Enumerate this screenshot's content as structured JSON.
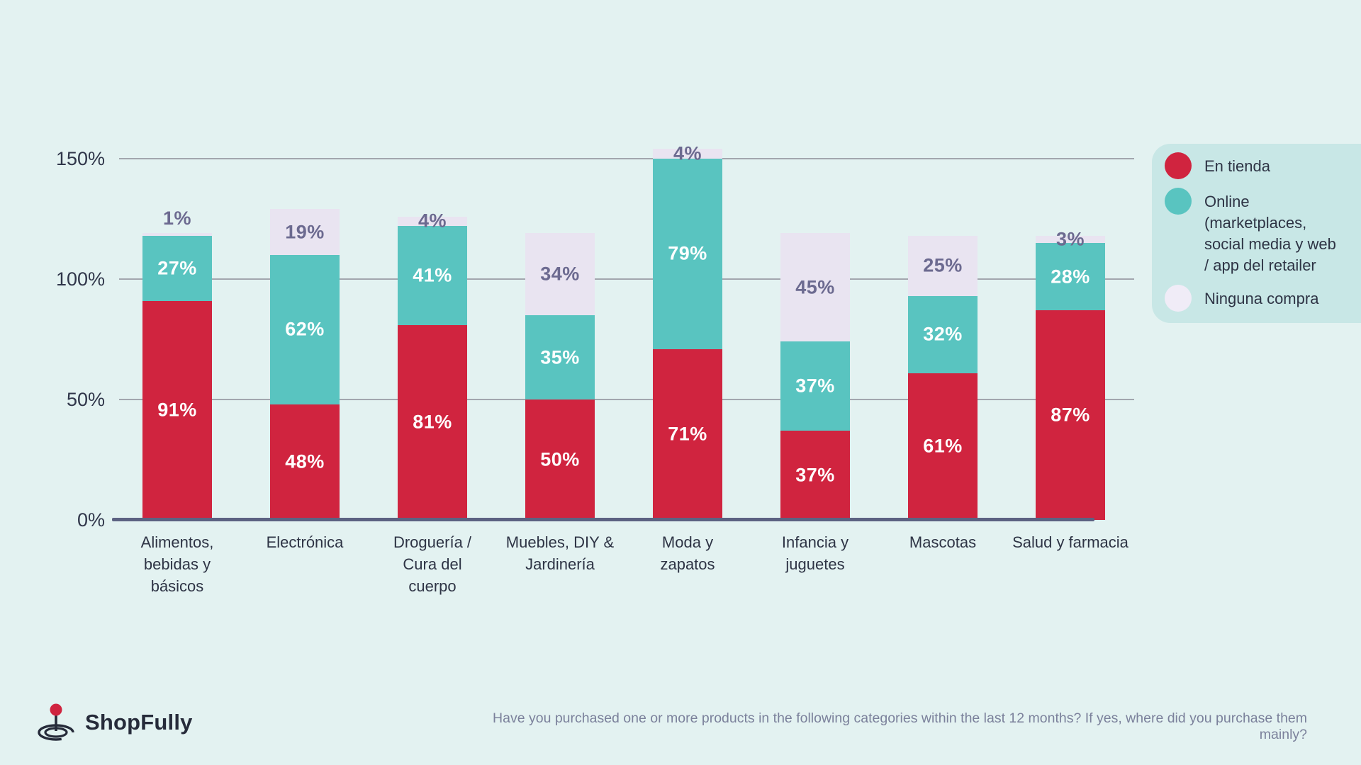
{
  "page": {
    "background_color": "#e3f2f1",
    "text_color_dark": "#2e3445",
    "gridline_color": "#a2a6ae",
    "baseline_color": "#5c6282"
  },
  "chart_data": {
    "type": "bar",
    "stacked": true,
    "grid": true,
    "categories": [
      "Alimentos, bebidas y básicos",
      "Electrónica",
      "Droguería / Cura del cuerpo",
      "Muebles, DIY & Jardinería",
      "Moda y zapatos",
      "Infancia y juguetes",
      "Mascotas",
      "Salud y farmacia"
    ],
    "category_labels_multiline": [
      "Alimentos,\nbebidas y\nbásicos",
      "Electrónica",
      "Droguería /\nCura del\ncuerpo",
      "Muebles, DIY &\nJardinería",
      "Moda y\nzapatos",
      "Infancia y\njuguetes",
      "Mascotas",
      "Salud y farmacia"
    ],
    "series": [
      {
        "name": "En tienda",
        "color": "#d0243f",
        "label_color": "#ffffff",
        "values": [
          91,
          48,
          81,
          50,
          71,
          37,
          61,
          87
        ]
      },
      {
        "name": "Online (marketplaces, social media y web / app del retailer",
        "color": "#59c4c0",
        "label_color": "#ffffff",
        "values": [
          27,
          62,
          41,
          35,
          79,
          37,
          32,
          28
        ]
      },
      {
        "name": "Ninguna compra",
        "color": "#e9e4f1",
        "label_color": "#6c6a90",
        "values": [
          1,
          19,
          4,
          34,
          4,
          45,
          25,
          3
        ]
      }
    ],
    "value_suffix": "%",
    "y_axis": {
      "max": 150,
      "ticks": [
        {
          "value": 0,
          "label": "0%"
        },
        {
          "value": 50,
          "label": "50%"
        },
        {
          "value": 100,
          "label": "100%"
        },
        {
          "value": 150,
          "label": "150%"
        }
      ]
    },
    "legend": {
      "position": "right",
      "background": "#c8e7e6",
      "items": [
        {
          "label": "En tienda",
          "color": "#d0243f"
        },
        {
          "label": "Online\n(marketplaces,\nsocial media y web\n/ app del retailer",
          "color": "#59c4c0"
        },
        {
          "label": "Ninguna compra",
          "color": "#f0ecf7"
        }
      ]
    }
  },
  "footer": {
    "logo_text": "ShopFully",
    "logo_accent_color": "#d0243f",
    "question": "Have you purchased one or more products in the following categories within the last 12 months? If yes, where did you purchase them mainly?"
  }
}
